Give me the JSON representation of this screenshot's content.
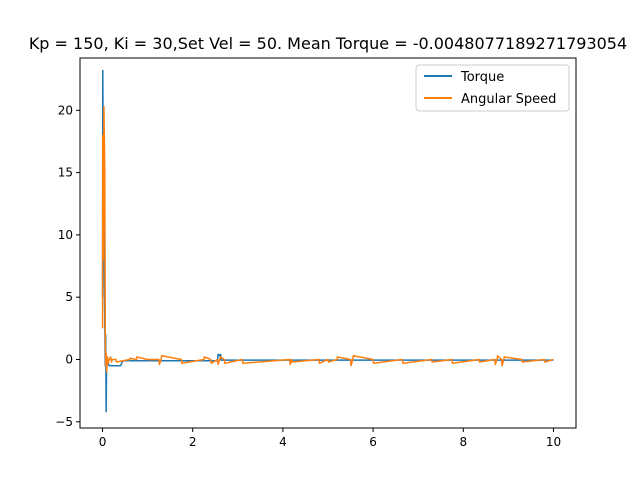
{
  "chart_data": {
    "type": "line",
    "title": "Kp = 150, Ki = 30,Set Vel = 50. Mean Torque = -0.0048077189271793054",
    "xlabel": "",
    "ylabel": "",
    "xlim": [
      -0.5,
      10.5
    ],
    "ylim": [
      -5.5,
      24.2
    ],
    "xticks": [
      0,
      2,
      4,
      6,
      8,
      10
    ],
    "yticks": [
      -5,
      0,
      5,
      10,
      15,
      20
    ],
    "grid": false,
    "legend_position": "top-right",
    "series": [
      {
        "name": "Torque",
        "color": "#1f77b4",
        "x": [
          0,
          0.005,
          0.01,
          0.03,
          0.04,
          0.06,
          0.07,
          0.08,
          0.09,
          0.1,
          0.11,
          0.15,
          0.2,
          0.3,
          0.4,
          0.45,
          1.0,
          2.0,
          2.55,
          2.56,
          2.58,
          2.6,
          2.62,
          2.63,
          3.0,
          4.0,
          6.0,
          8.0,
          10.0
        ],
        "y": [
          5.0,
          23.2,
          20.0,
          12.0,
          6.0,
          -0.5,
          2.0,
          -4.2,
          -0.2,
          -0.5,
          -0.2,
          -0.5,
          -0.5,
          -0.5,
          -0.5,
          -0.1,
          -0.1,
          -0.1,
          -0.1,
          0.4,
          0.4,
          0.3,
          0.4,
          -0.05,
          -0.05,
          -0.05,
          -0.05,
          -0.05,
          -0.05
        ]
      },
      {
        "name": "Angular Speed",
        "color": "#ff7f0e",
        "x": [
          0,
          0.005,
          0.015,
          0.03,
          0.05,
          0.06,
          0.07,
          0.08,
          0.09,
          0.1,
          0.11,
          0.12,
          0.15,
          0.18,
          0.2,
          0.21,
          0.3,
          0.31,
          0.6,
          0.61,
          0.75,
          0.76,
          1.0,
          1.25,
          1.26,
          1.3,
          1.31,
          1.75,
          1.76,
          2.25,
          2.26,
          2.4,
          2.41,
          2.55,
          2.56,
          2.6,
          2.61,
          2.7,
          2.71,
          3.1,
          3.11,
          4.15,
          4.16,
          4.2,
          4.21,
          4.8,
          4.81,
          5.0,
          5.01,
          5.2,
          5.21,
          5.5,
          5.51,
          5.55,
          5.56,
          6.0,
          6.01,
          6.65,
          6.66,
          7.3,
          7.31,
          7.75,
          7.76,
          8.35,
          8.36,
          8.7,
          8.71,
          8.75,
          8.76,
          8.85,
          8.86,
          8.9,
          8.91,
          9.3,
          9.31,
          9.8,
          9.81,
          10.0
        ],
        "y": [
          2.5,
          18.0,
          8.0,
          20.3,
          15.0,
          2.0,
          -0.5,
          0.5,
          -1.0,
          -0.3,
          0.2,
          -0.3,
          0.0,
          0.2,
          -0.2,
          0.0,
          0.0,
          -0.2,
          0.0,
          0.1,
          0.0,
          0.2,
          0.0,
          0.0,
          -0.4,
          0.0,
          0.3,
          0.0,
          -0.3,
          0.0,
          0.2,
          0.0,
          -0.3,
          0.0,
          -0.4,
          0.0,
          0.2,
          0.0,
          -0.3,
          0.0,
          -0.3,
          0.0,
          -0.4,
          0.0,
          -0.2,
          0.0,
          -0.3,
          0.0,
          -0.2,
          0.0,
          0.2,
          0.0,
          -0.5,
          0.0,
          0.3,
          0.0,
          -0.3,
          0.0,
          -0.3,
          0.0,
          -0.2,
          0.0,
          -0.3,
          0.0,
          -0.2,
          0.0,
          -0.4,
          0.0,
          0.3,
          0.0,
          -0.5,
          0.0,
          0.2,
          0.0,
          -0.2,
          0.0,
          -0.2,
          0.0
        ]
      }
    ]
  }
}
